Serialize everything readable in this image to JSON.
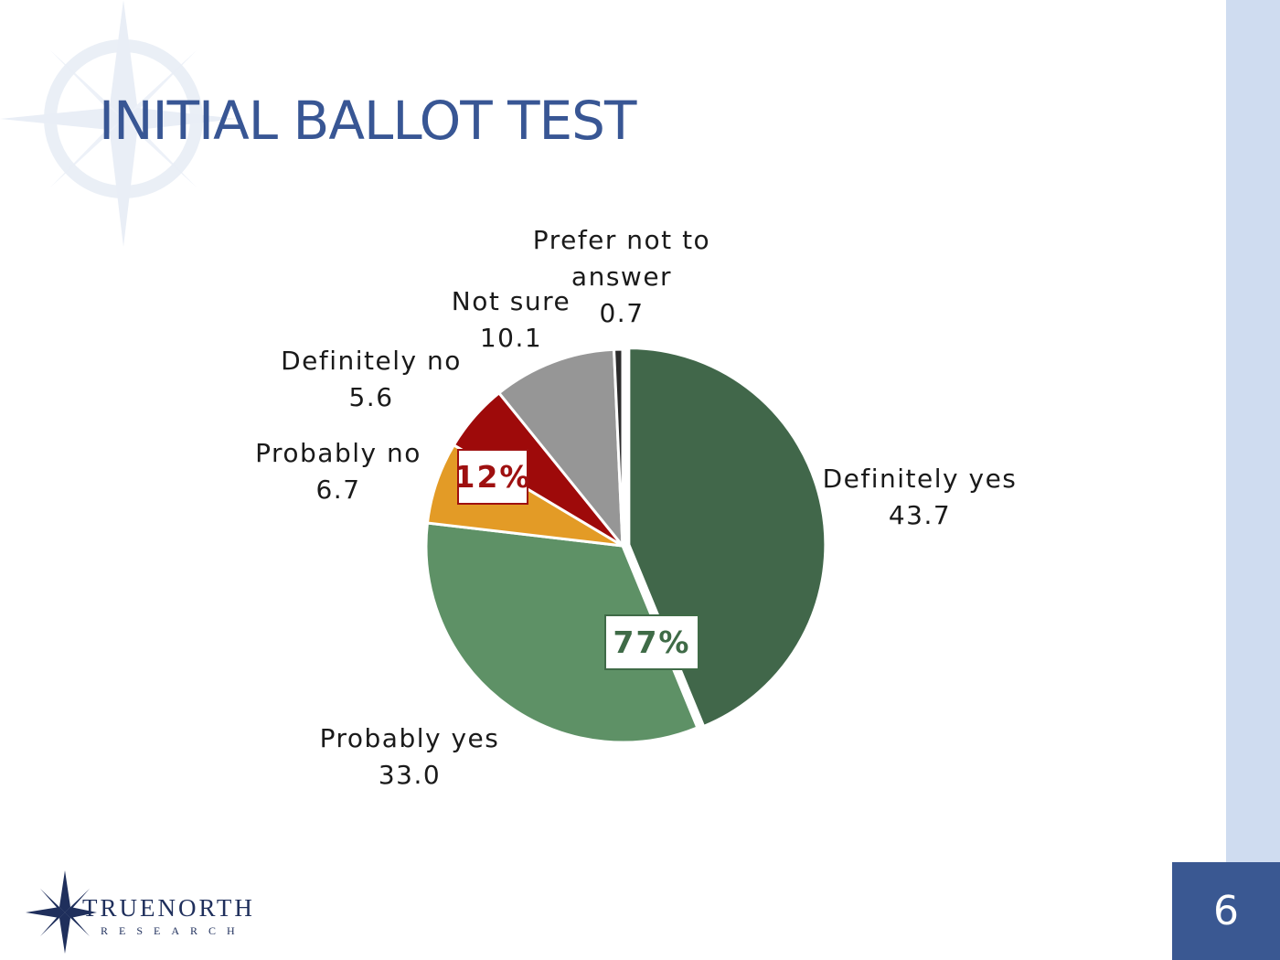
{
  "slide": {
    "title": "INITIAL BALLOT TEST",
    "page_number": "6"
  },
  "logo": {
    "name": "TRUENORTH",
    "subtitle": "RESEARCH"
  },
  "colors": {
    "title": "#385694",
    "side_band": "#cfdcf0",
    "page_box": "#3a5892",
    "support_callout": "#3f6b47",
    "oppose_callout": "#9e1010"
  },
  "callouts": {
    "support": "77%",
    "oppose": "12%"
  },
  "chart_data": {
    "type": "pie",
    "title": "",
    "slices": [
      {
        "label": "Definitely yes",
        "value": 43.7,
        "color": "#41674a"
      },
      {
        "label": "Probably yes",
        "value": 33.0,
        "color": "#5e9166"
      },
      {
        "label": "Probably no",
        "value": 6.7,
        "color": "#e39b26"
      },
      {
        "label": "Definitely no",
        "value": 5.6,
        "color": "#9e0a0a"
      },
      {
        "label": "Not sure",
        "value": 10.1,
        "color": "#969696"
      },
      {
        "label": "Prefer not to answer",
        "value": 0.7,
        "color": "#2b2b2b"
      }
    ]
  }
}
